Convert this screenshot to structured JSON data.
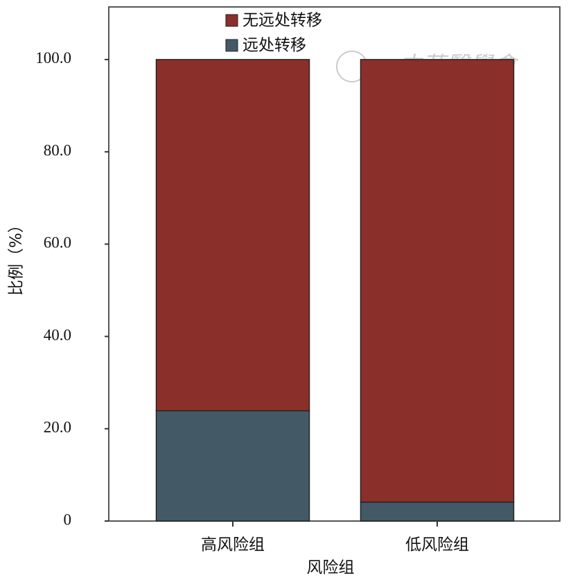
{
  "chart_data": {
    "type": "stacked_bar",
    "categories": [
      "高风险组",
      "低风险组"
    ],
    "series": [
      {
        "name": "远处转移",
        "color": "#435a66",
        "values": [
          23.9,
          4.1
        ]
      },
      {
        "name": "无远处转移",
        "color": "#8b2f2a",
        "values": [
          76.1,
          95.9
        ]
      }
    ],
    "xlabel": "风险组",
    "ylabel": "比例（%）",
    "ylim": [
      0,
      111.4
    ],
    "yticks": [
      0,
      {
        "value": 20,
        "label": "20.0"
      },
      {
        "value": 40,
        "label": "40.0"
      },
      {
        "value": 60,
        "label": "60.0"
      },
      {
        "value": 80,
        "label": "80.0"
      },
      {
        "value": 100,
        "label": "100.0"
      }
    ],
    "legend": "upper left",
    "watermark": "中華醫學會"
  }
}
